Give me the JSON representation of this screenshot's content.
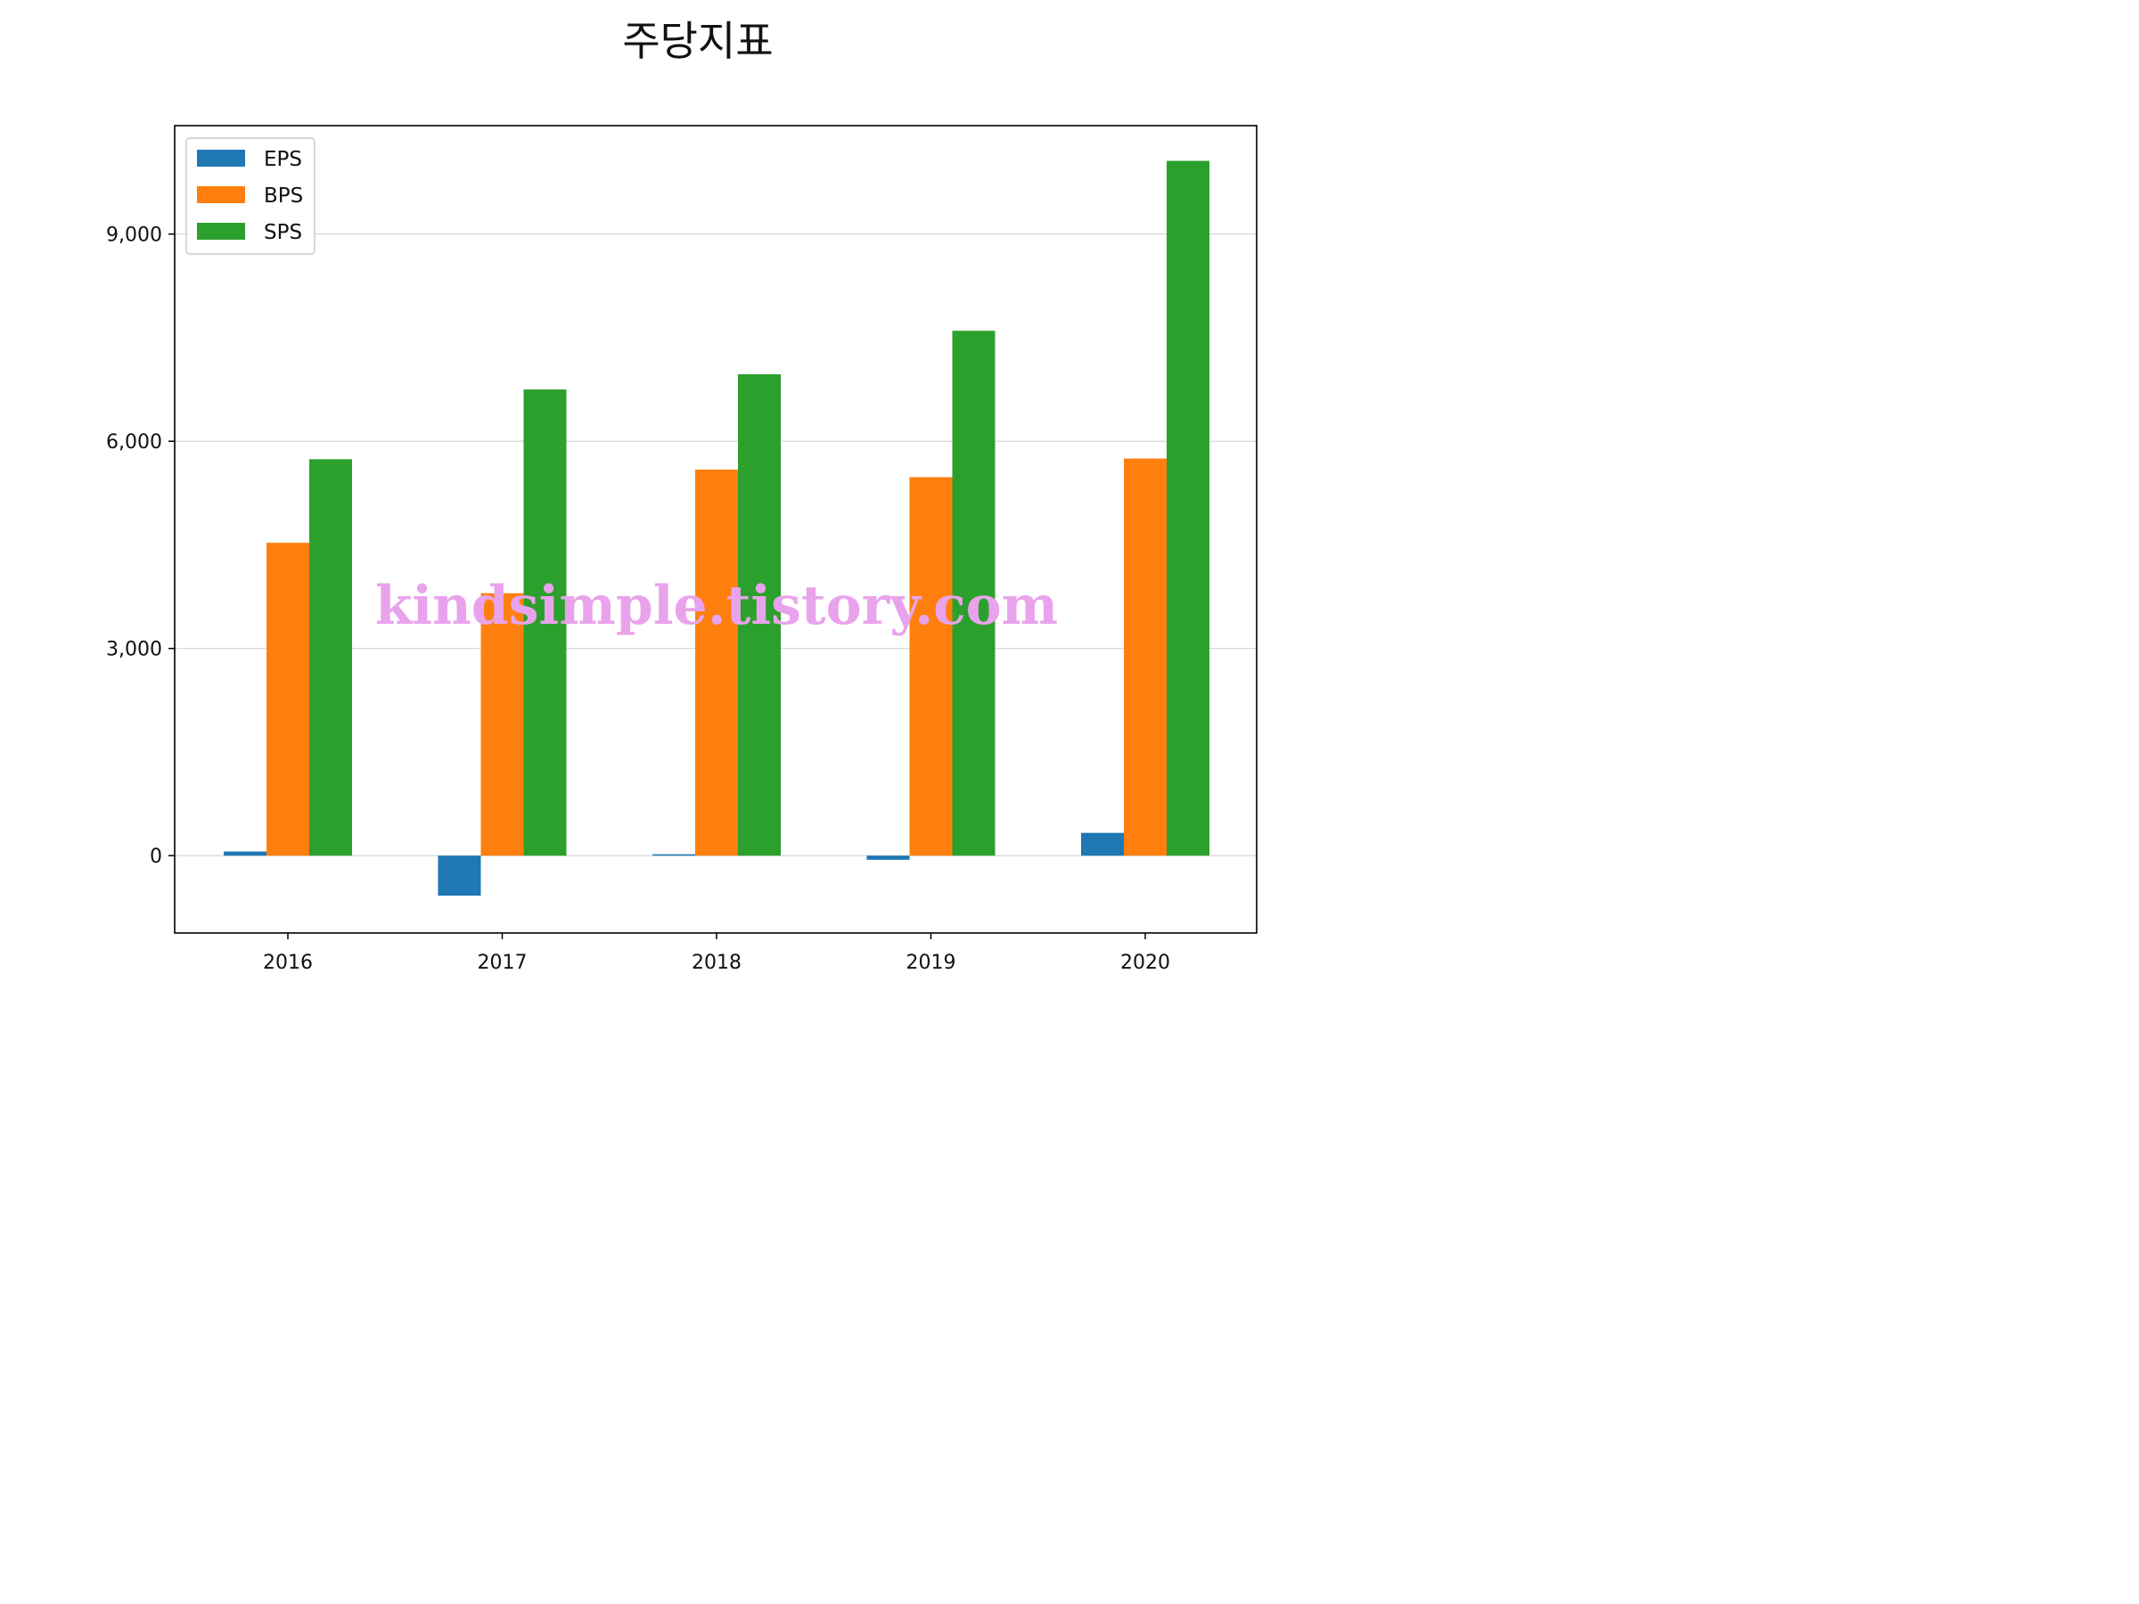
{
  "chart_data": {
    "type": "bar",
    "title": "주당지표",
    "categories": [
      "2016",
      "2017",
      "2018",
      "2019",
      "2020"
    ],
    "series": [
      {
        "name": "EPS",
        "color": "#1f77b4",
        "values": [
          60,
          -580,
          20,
          -60,
          330
        ]
      },
      {
        "name": "BPS",
        "color": "#ff7f0e",
        "values": [
          4530,
          3800,
          5590,
          5480,
          5750
        ]
      },
      {
        "name": "SPS",
        "color": "#2ca02c",
        "values": [
          5740,
          6750,
          6970,
          7600,
          10060
        ]
      }
    ],
    "yticks": [
      0,
      3000,
      6000,
      9000
    ],
    "ytick_labels": [
      "0",
      "3,000",
      "6,000",
      "9,000"
    ],
    "ylim": [
      -1120,
      10570
    ],
    "grid": "y",
    "legend_position": "top-left",
    "xlabel": "",
    "ylabel": ""
  },
  "watermark": "kindsimple.tistory.com"
}
